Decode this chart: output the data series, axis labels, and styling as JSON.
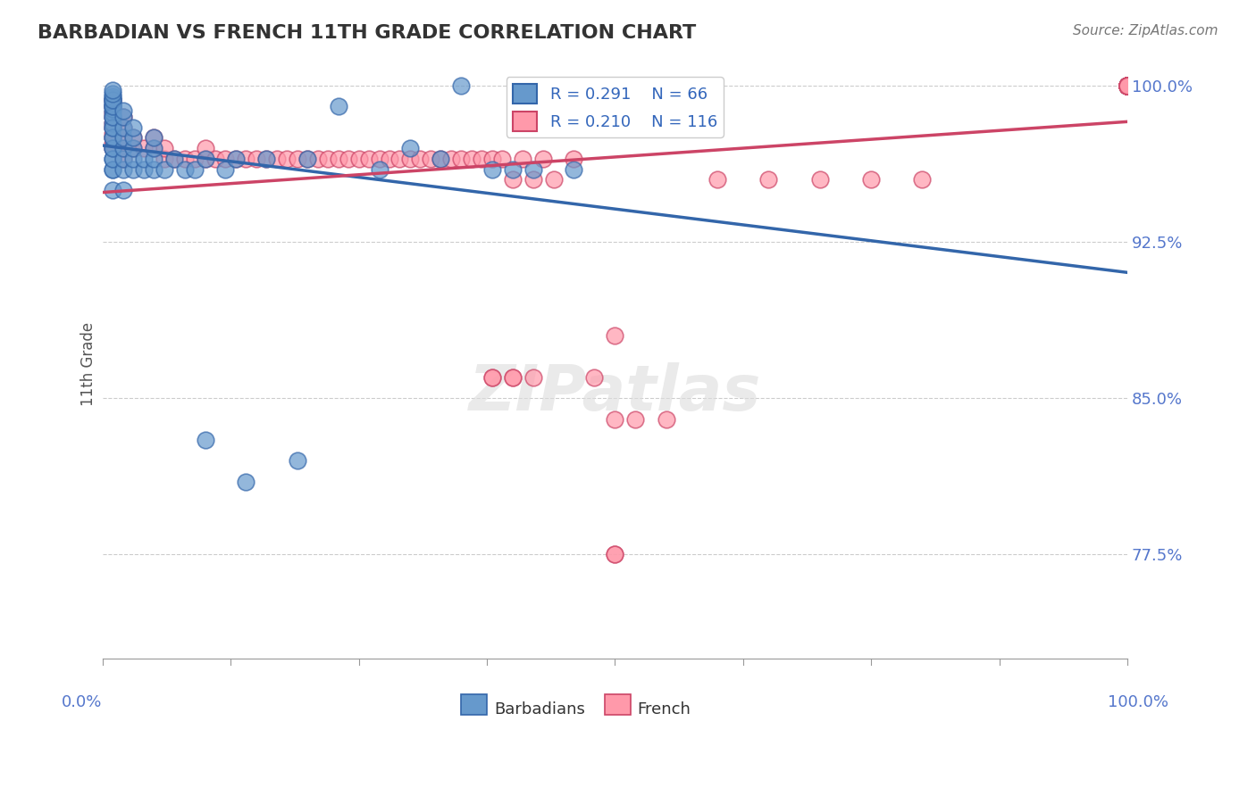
{
  "title": "BARBADIAN VS FRENCH 11TH GRADE CORRELATION CHART",
  "source": "Source: ZipAtlas.com",
  "ylabel": "11th Grade",
  "xmin": 0.0,
  "xmax": 1.0,
  "ymin": 0.725,
  "ymax": 1.008,
  "yticks": [
    0.775,
    0.85,
    0.925,
    1.0
  ],
  "ytick_labels": [
    "77.5%",
    "85.0%",
    "92.5%",
    "100.0%"
  ],
  "blue_R": "R = 0.291",
  "blue_N": "N = 66",
  "pink_R": "R = 0.210",
  "pink_N": "N = 116",
  "blue_color": "#6699CC",
  "pink_color": "#FF99AA",
  "blue_line_color": "#3366AA",
  "pink_line_color": "#CC4466",
  "watermark_text": "ZIPatlas",
  "legend_label_blue": "Barbadians",
  "legend_label_pink": "French",
  "blue_scatter_x": [
    0.01,
    0.01,
    0.01,
    0.01,
    0.01,
    0.01,
    0.01,
    0.01,
    0.01,
    0.01,
    0.01,
    0.01,
    0.01,
    0.01,
    0.01,
    0.01,
    0.01,
    0.01,
    0.01,
    0.01,
    0.01,
    0.01,
    0.01,
    0.01,
    0.01,
    0.01,
    0.02,
    0.02,
    0.02,
    0.02,
    0.02,
    0.02,
    0.02,
    0.02,
    0.03,
    0.03,
    0.03,
    0.03,
    0.03,
    0.04,
    0.04,
    0.05,
    0.05,
    0.05,
    0.05,
    0.06,
    0.07,
    0.08,
    0.09,
    0.1,
    0.1,
    0.12,
    0.13,
    0.14,
    0.16,
    0.19,
    0.2,
    0.23,
    0.27,
    0.3,
    0.33,
    0.35,
    0.38,
    0.4,
    0.42,
    0.46
  ],
  "blue_scatter_y": [
    0.95,
    0.96,
    0.965,
    0.97,
    0.975,
    0.98,
    0.982,
    0.985,
    0.987,
    0.989,
    0.99,
    0.991,
    0.992,
    0.993,
    0.994,
    0.995,
    0.96,
    0.965,
    0.97,
    0.975,
    0.98,
    0.985,
    0.99,
    0.993,
    0.996,
    0.998,
    0.95,
    0.96,
    0.965,
    0.97,
    0.975,
    0.98,
    0.985,
    0.988,
    0.96,
    0.965,
    0.97,
    0.975,
    0.98,
    0.96,
    0.965,
    0.96,
    0.965,
    0.97,
    0.975,
    0.96,
    0.965,
    0.96,
    0.96,
    0.83,
    0.965,
    0.96,
    0.965,
    0.81,
    0.965,
    0.82,
    0.965,
    0.99,
    0.96,
    0.97,
    0.965,
    1.0,
    0.96,
    0.96,
    0.96,
    0.96
  ],
  "pink_scatter_x": [
    0.01,
    0.01,
    0.01,
    0.01,
    0.01,
    0.01,
    0.01,
    0.01,
    0.01,
    0.01,
    0.02,
    0.02,
    0.02,
    0.02,
    0.02,
    0.03,
    0.03,
    0.04,
    0.05,
    0.05,
    0.06,
    0.06,
    0.07,
    0.08,
    0.09,
    0.1,
    0.1,
    0.11,
    0.12,
    0.13,
    0.14,
    0.15,
    0.16,
    0.17,
    0.18,
    0.19,
    0.2,
    0.21,
    0.22,
    0.23,
    0.24,
    0.25,
    0.26,
    0.27,
    0.28,
    0.29,
    0.3,
    0.31,
    0.32,
    0.33,
    0.34,
    0.35,
    0.36,
    0.37,
    0.38,
    0.39,
    0.4,
    0.41,
    0.42,
    0.43,
    0.44,
    0.46,
    0.48,
    0.5,
    0.38,
    0.4,
    0.42,
    0.5,
    0.52,
    0.55,
    0.6,
    0.65,
    0.7,
    0.75,
    0.8,
    0.38,
    0.4,
    0.5,
    0.5,
    1.0,
    1.0,
    1.0,
    1.0,
    1.0,
    1.0,
    1.0,
    1.0,
    1.0,
    1.0,
    1.0,
    1.0,
    1.0,
    1.0,
    1.0,
    1.0,
    1.0,
    1.0,
    1.0,
    1.0,
    1.0,
    1.0,
    1.0,
    1.0,
    1.0,
    1.0,
    1.0,
    1.0,
    1.0,
    1.0,
    1.0,
    1.0,
    1.0,
    1.0,
    1.0,
    1.0,
    1.0,
    1.0,
    1.0,
    1.0
  ],
  "pink_scatter_y": [
    0.97,
    0.972,
    0.975,
    0.977,
    0.98,
    0.982,
    0.985,
    0.987,
    0.99,
    0.993,
    0.965,
    0.97,
    0.975,
    0.98,
    0.985,
    0.97,
    0.975,
    0.97,
    0.97,
    0.975,
    0.965,
    0.97,
    0.965,
    0.965,
    0.965,
    0.965,
    0.97,
    0.965,
    0.965,
    0.965,
    0.965,
    0.965,
    0.965,
    0.965,
    0.965,
    0.965,
    0.965,
    0.965,
    0.965,
    0.965,
    0.965,
    0.965,
    0.965,
    0.965,
    0.965,
    0.965,
    0.965,
    0.965,
    0.965,
    0.965,
    0.965,
    0.965,
    0.965,
    0.965,
    0.965,
    0.965,
    0.955,
    0.965,
    0.955,
    0.965,
    0.955,
    0.965,
    0.86,
    0.88,
    0.86,
    0.86,
    0.86,
    0.84,
    0.84,
    0.84,
    0.955,
    0.955,
    0.955,
    0.955,
    0.955,
    0.86,
    0.86,
    0.775,
    0.775,
    1.0,
    1.0,
    1.0,
    1.0,
    1.0,
    1.0,
    1.0,
    1.0,
    1.0,
    1.0,
    1.0,
    1.0,
    1.0,
    1.0,
    1.0,
    1.0,
    1.0,
    1.0,
    1.0,
    1.0,
    1.0,
    1.0,
    1.0,
    1.0,
    1.0,
    1.0,
    1.0,
    1.0,
    1.0,
    1.0,
    1.0,
    1.0,
    1.0,
    1.0,
    1.0,
    1.0,
    1.0,
    1.0,
    1.0,
    1.0
  ]
}
